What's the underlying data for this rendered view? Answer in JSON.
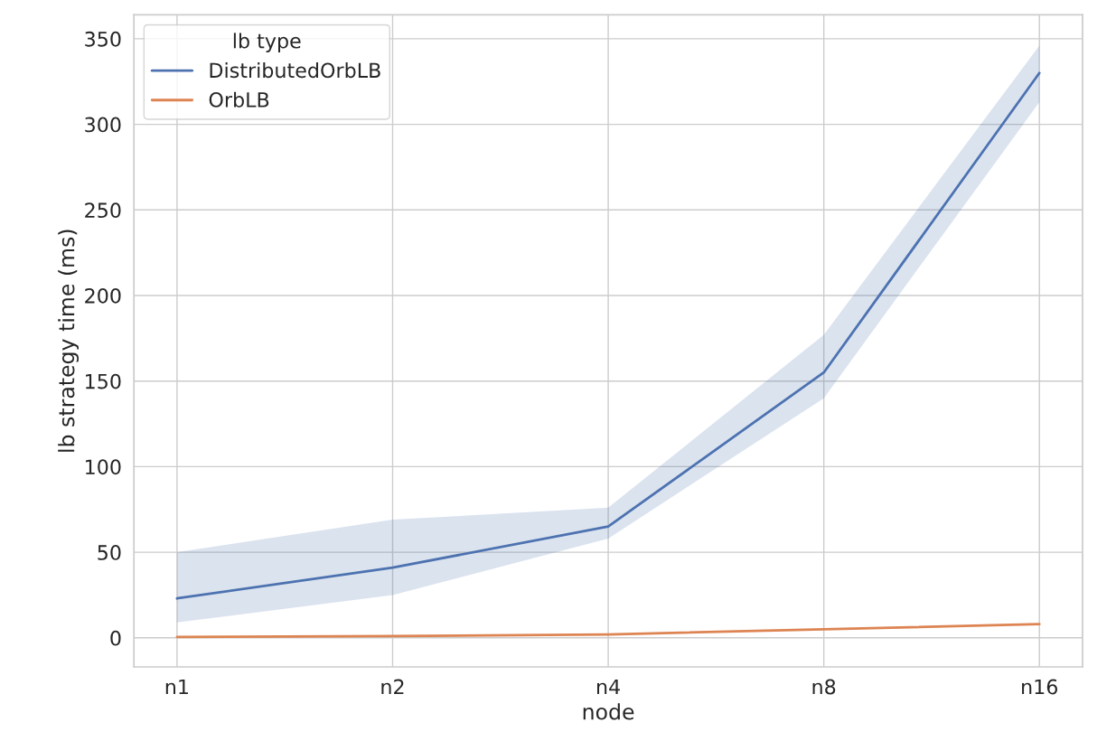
{
  "chart_data": {
    "type": "line",
    "xlabel": "node",
    "ylabel": "lb strategy time (ms)",
    "legend_title": "lb type",
    "categories": [
      "n1",
      "n2",
      "n4",
      "n8",
      "n16"
    ],
    "series": [
      {
        "name": "DistributedOrbLB",
        "color": "#4c72b0",
        "values": [
          23,
          41,
          65,
          155,
          330
        ],
        "lower": [
          9,
          25,
          58,
          140,
          313
        ],
        "upper": [
          50,
          69,
          76,
          177,
          346
        ]
      },
      {
        "name": "OrbLB",
        "color": "#dd8452",
        "values": [
          0.5,
          1,
          2,
          5,
          8
        ]
      }
    ],
    "ylim": [
      -17,
      364
    ],
    "yticks": [
      0,
      50,
      100,
      150,
      200,
      250,
      300,
      350
    ],
    "grid": true,
    "legend": "top left",
    "line_style": "solid"
  }
}
